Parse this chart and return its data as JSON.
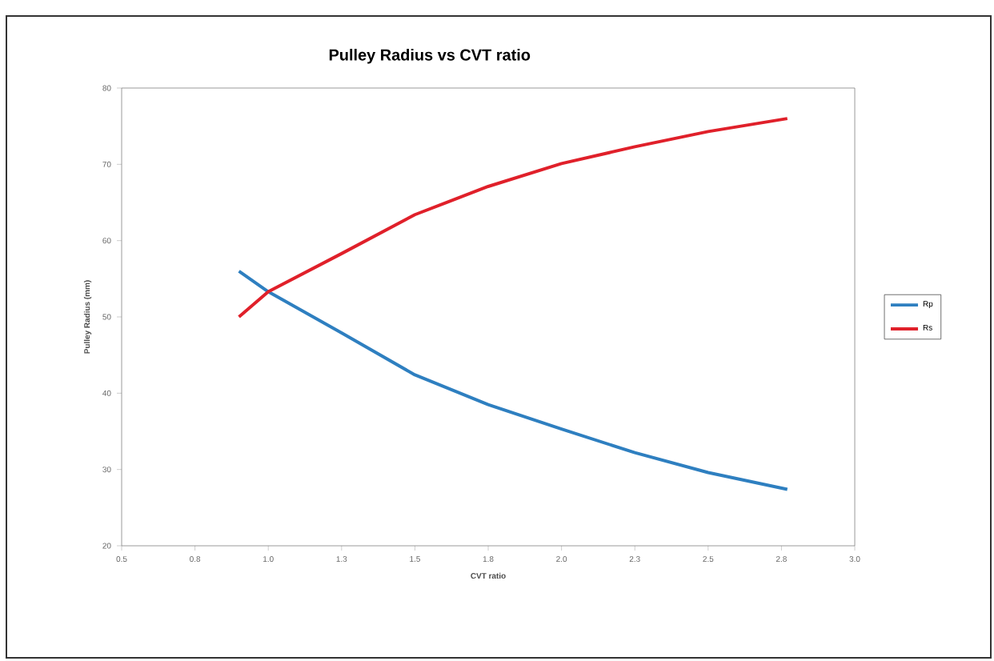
{
  "chart_data": {
    "type": "line",
    "title": "Pulley Radius vs CVT ratio",
    "xlabel": "CVT ratio",
    "ylabel": "Pulley Radius  (mm)",
    "x": [
      0.9,
      1.0,
      1.25,
      1.5,
      1.75,
      2.0,
      2.25,
      2.5,
      2.77
    ],
    "series": [
      {
        "name": "Rp",
        "color": "#2e7fc0",
        "values": [
          56,
          53.3,
          47.9,
          42.4,
          38.5,
          35.3,
          32.2,
          29.6,
          27.4
        ]
      },
      {
        "name": "Rs",
        "color": "#e0202a",
        "values": [
          50,
          53.3,
          58.3,
          63.4,
          67.1,
          70.1,
          72.3,
          74.3,
          76
        ]
      }
    ],
    "xlim": [
      0.5,
      3.0
    ],
    "xticks": [
      0.5,
      {
        "value": 0.75,
        "label": "0.8"
      },
      {
        "value": 1,
        "label": "1.0"
      },
      {
        "value": 1.25,
        "label": "1.3"
      },
      1.5,
      {
        "value": 1.75,
        "label": "1.8"
      },
      {
        "value": 2,
        "label": "2.0"
      },
      {
        "value": 2.25,
        "label": "2.3"
      },
      2.5,
      {
        "value": 2.75,
        "label": "2.8"
      },
      {
        "value": 3,
        "label": "3.0"
      }
    ],
    "ylim": [
      20,
      80
    ],
    "yticks": [
      20,
      30,
      40,
      50,
      60,
      70,
      80
    ],
    "grid": false,
    "legend": "right",
    "marker": "none",
    "line_style": "solid"
  }
}
